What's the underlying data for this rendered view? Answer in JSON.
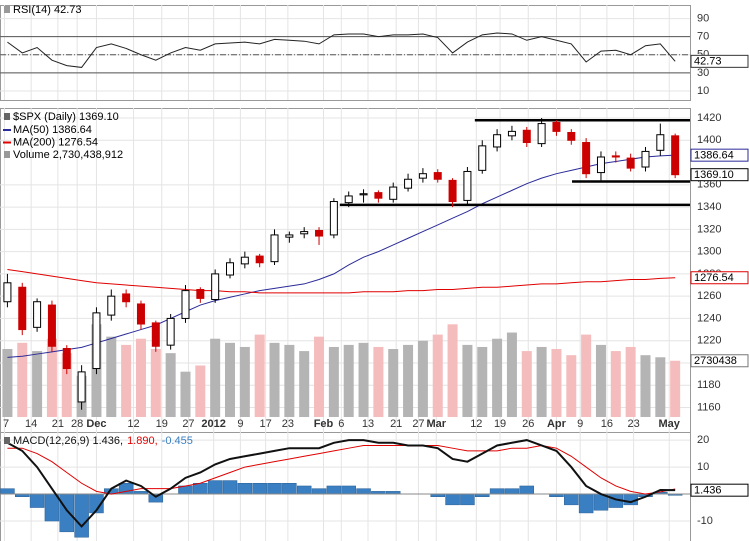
{
  "chart_data": [
    {
      "type": "line",
      "title": "RSI(14) 42.73",
      "tag": "42.73",
      "color": "#222222",
      "values": [
        64,
        52,
        58,
        44,
        38,
        36,
        58,
        62,
        57,
        50,
        44,
        52,
        58,
        55,
        62,
        63,
        64,
        62,
        67,
        66,
        65,
        62,
        72,
        73,
        73,
        70,
        72,
        72,
        73,
        69,
        52,
        64,
        72,
        74,
        73,
        66,
        70,
        66,
        62,
        42,
        54,
        55,
        50,
        60,
        62,
        42.73
      ],
      "ylim": [
        0,
        105
      ],
      "yticks": [
        10,
        30,
        50,
        70,
        90
      ],
      "levels": [
        30,
        50,
        70
      ]
    },
    {
      "type": "candlestick",
      "title": "$SPX (Daily) 1369.10",
      "tag": "1369.10",
      "up_color": "#000000",
      "down_color": "#cc0000",
      "open": [
        1255,
        1268,
        1232,
        1252,
        1213,
        1165,
        1195,
        1243,
        1262,
        1253,
        1236,
        1216,
        1240,
        1266,
        1257,
        1279,
        1289,
        1296,
        1291,
        1313,
        1316,
        1319,
        1315,
        1344,
        1351,
        1353,
        1347,
        1357,
        1366,
        1371,
        1364,
        1346,
        1373,
        1394,
        1404,
        1409,
        1397,
        1416,
        1407,
        1398,
        1371,
        1386,
        1384,
        1376,
        1391,
        1404
      ],
      "high": [
        1280,
        1272,
        1258,
        1256,
        1216,
        1198,
        1250,
        1266,
        1266,
        1256,
        1238,
        1244,
        1270,
        1268,
        1284,
        1294,
        1300,
        1298,
        1320,
        1318,
        1322,
        1322,
        1348,
        1354,
        1356,
        1355,
        1362,
        1370,
        1375,
        1374,
        1366,
        1376,
        1400,
        1410,
        1413,
        1412,
        1420,
        1418,
        1410,
        1402,
        1390,
        1390,
        1388,
        1394,
        1415,
        1406
      ],
      "low": [
        1250,
        1225,
        1228,
        1210,
        1190,
        1158,
        1190,
        1238,
        1250,
        1230,
        1210,
        1212,
        1236,
        1254,
        1254,
        1276,
        1285,
        1286,
        1288,
        1308,
        1312,
        1306,
        1312,
        1340,
        1344,
        1344,
        1344,
        1354,
        1362,
        1362,
        1340,
        1342,
        1370,
        1390,
        1400,
        1394,
        1394,
        1404,
        1396,
        1366,
        1364,
        1380,
        1372,
        1372,
        1386,
        1366
      ],
      "close": [
        1272,
        1230,
        1255,
        1215,
        1195,
        1192,
        1245,
        1260,
        1255,
        1235,
        1215,
        1240,
        1265,
        1258,
        1280,
        1290,
        1295,
        1290,
        1315,
        1315,
        1318,
        1314,
        1345,
        1350,
        1352,
        1348,
        1358,
        1365,
        1370,
        1365,
        1345,
        1372,
        1395,
        1405,
        1408,
        1398,
        1415,
        1408,
        1400,
        1370,
        1385,
        1385,
        1375,
        1390,
        1405,
        1369.1
      ],
      "series": [
        {
          "name": "MA(50) 1386.64",
          "color": "#2b2b9a",
          "tag": "1386.64",
          "values": [
            1205,
            1206,
            1208,
            1210,
            1212,
            1214,
            1218,
            1222,
            1226,
            1230,
            1234,
            1240,
            1246,
            1252,
            1256,
            1259,
            1262,
            1265,
            1267,
            1269,
            1271,
            1275,
            1280,
            1288,
            1295,
            1300,
            1306,
            1312,
            1318,
            1324,
            1330,
            1336,
            1343,
            1349,
            1355,
            1361,
            1366,
            1370,
            1373,
            1376,
            1379,
            1381,
            1383,
            1385,
            1386,
            1386.64
          ]
        },
        {
          "name": "MA(200) 1276.54",
          "color": "#e00000",
          "tag": "1276.54",
          "values": [
            1284,
            1282,
            1280,
            1278,
            1276,
            1274,
            1272,
            1271,
            1270,
            1269,
            1268,
            1267,
            1266,
            1265,
            1265,
            1264,
            1264,
            1263,
            1263,
            1263,
            1263,
            1263,
            1263,
            1263,
            1264,
            1264,
            1264,
            1265,
            1265,
            1266,
            1266,
            1267,
            1268,
            1268,
            1269,
            1270,
            1271,
            1271,
            1272,
            1273,
            1273,
            1274,
            1275,
            1275,
            1276,
            1276.54
          ]
        }
      ],
      "volume": {
        "name": "Volume 2,730,438,912",
        "tag": "2730438",
        "up_color": "#b4b4b4",
        "down_color": "#f4bcbc",
        "ylim": [
          0,
          15000000000
        ],
        "values": [
          3300000000,
          3600000000,
          3200000000,
          3800000000,
          3100000000,
          2000000000,
          4500000000,
          3900000000,
          3500000000,
          3800000000,
          3300000000,
          3100000000,
          2200000000,
          2500000000,
          3800000000,
          3600000000,
          3400000000,
          4000000000,
          3600000000,
          3500000000,
          3200000000,
          3900000000,
          3400000000,
          3500000000,
          3600000000,
          3400000000,
          3300000000,
          3500000000,
          3700000000,
          4000000000,
          4500000000,
          3500000000,
          3400000000,
          3800000000,
          4100000000,
          3200000000,
          3400000000,
          3300000000,
          3000000000,
          4000000000,
          3500000000,
          3200000000,
          3400000000,
          3000000000,
          2900000000,
          2730438912
        ]
      },
      "trendlines": [
        {
          "value": 1418,
          "x": [
            31.5,
            46
          ]
        },
        {
          "value": 1363,
          "x": [
            38.05,
            46
          ]
        },
        {
          "value": 1342,
          "x": [
            22.4,
            46
          ]
        }
      ],
      "ylim": [
        1138,
        1429
      ],
      "yticks": [
        1160,
        1180,
        1200,
        1220,
        1240,
        1260,
        1280,
        1300,
        1320,
        1340,
        1360,
        1400,
        1420
      ],
      "xlim": [
        -0.5,
        46
      ],
      "xticks": [
        {
          "value": -0.2,
          "label": "7"
        },
        {
          "value": 1.6,
          "label": "14"
        },
        {
          "value": 3.4,
          "label": "21"
        },
        {
          "value": 4.7,
          "label": "28"
        },
        {
          "value": 6.0,
          "label": "Dec"
        },
        {
          "value": 8.5,
          "label": "12"
        },
        {
          "value": 10.4,
          "label": "19"
        },
        {
          "value": 12.2,
          "label": "27"
        },
        {
          "value": 13.9,
          "label": "2012"
        },
        {
          "value": 15.7,
          "label": "9"
        },
        {
          "value": 17.4,
          "label": "17"
        },
        {
          "value": 18.9,
          "label": "23"
        },
        {
          "value": 21.3,
          "label": "Feb"
        },
        {
          "value": 22.5,
          "label": "6"
        },
        {
          "value": 24.3,
          "label": "13"
        },
        {
          "value": 26.2,
          "label": "21"
        },
        {
          "value": 27.7,
          "label": "27"
        },
        {
          "value": 28.9,
          "label": "Mar"
        },
        {
          "value": 31.6,
          "label": "12"
        },
        {
          "value": 33.2,
          "label": "19"
        },
        {
          "value": 35.1,
          "label": "26"
        },
        {
          "value": 37.0,
          "label": "Apr"
        },
        {
          "value": 38.6,
          "label": "9"
        },
        {
          "value": 40.4,
          "label": "16"
        },
        {
          "value": 42.2,
          "label": "23"
        },
        {
          "value": 44.6,
          "label": "May"
        }
      ]
    },
    {
      "type": "macd",
      "tag": "1.436",
      "series": [
        {
          "name": "MACD(12,26,9) 1.436,",
          "color": "#111111",
          "values": [
            19,
            16,
            10,
            2,
            -6,
            -12,
            -6,
            2,
            5,
            3,
            -1,
            2,
            6,
            8,
            11,
            13,
            14,
            15,
            16,
            17,
            17,
            17,
            19,
            20,
            20,
            19,
            19,
            18,
            18,
            17,
            13,
            12,
            15,
            18,
            19,
            20,
            18,
            16,
            10,
            3,
            0,
            -2,
            -3,
            -1,
            1.5,
            1.436
          ]
        },
        {
          "name": "1.890,",
          "color": "#e00000",
          "values": [
            17,
            17,
            15,
            12,
            8,
            4,
            1,
            0,
            1,
            2,
            2,
            2,
            3,
            4,
            6,
            8,
            10,
            11,
            12,
            13,
            14,
            15,
            16,
            17,
            18,
            18,
            18,
            18,
            18,
            18,
            17,
            16,
            16,
            16,
            17,
            17,
            18,
            17,
            14,
            10,
            6,
            3,
            1,
            0,
            0.8,
            1.89
          ]
        },
        {
          "name": "-0.455",
          "color": "#3a7fc1",
          "values": [
            2,
            -1,
            -5,
            -10,
            -14,
            -16,
            -7,
            2,
            4,
            1,
            -3,
            0,
            3,
            4,
            5,
            5,
            4,
            4,
            4,
            4,
            3,
            2,
            3,
            3,
            2,
            1,
            1,
            0,
            0,
            -1,
            -4,
            -4,
            -1,
            2,
            2,
            3,
            0,
            -1,
            -4,
            -7,
            -6,
            -5,
            -4,
            -1,
            0.7,
            -0.455
          ]
        }
      ],
      "ylim": [
        -17.4,
        23
      ],
      "yticks": [
        -10,
        10,
        20
      ]
    }
  ]
}
